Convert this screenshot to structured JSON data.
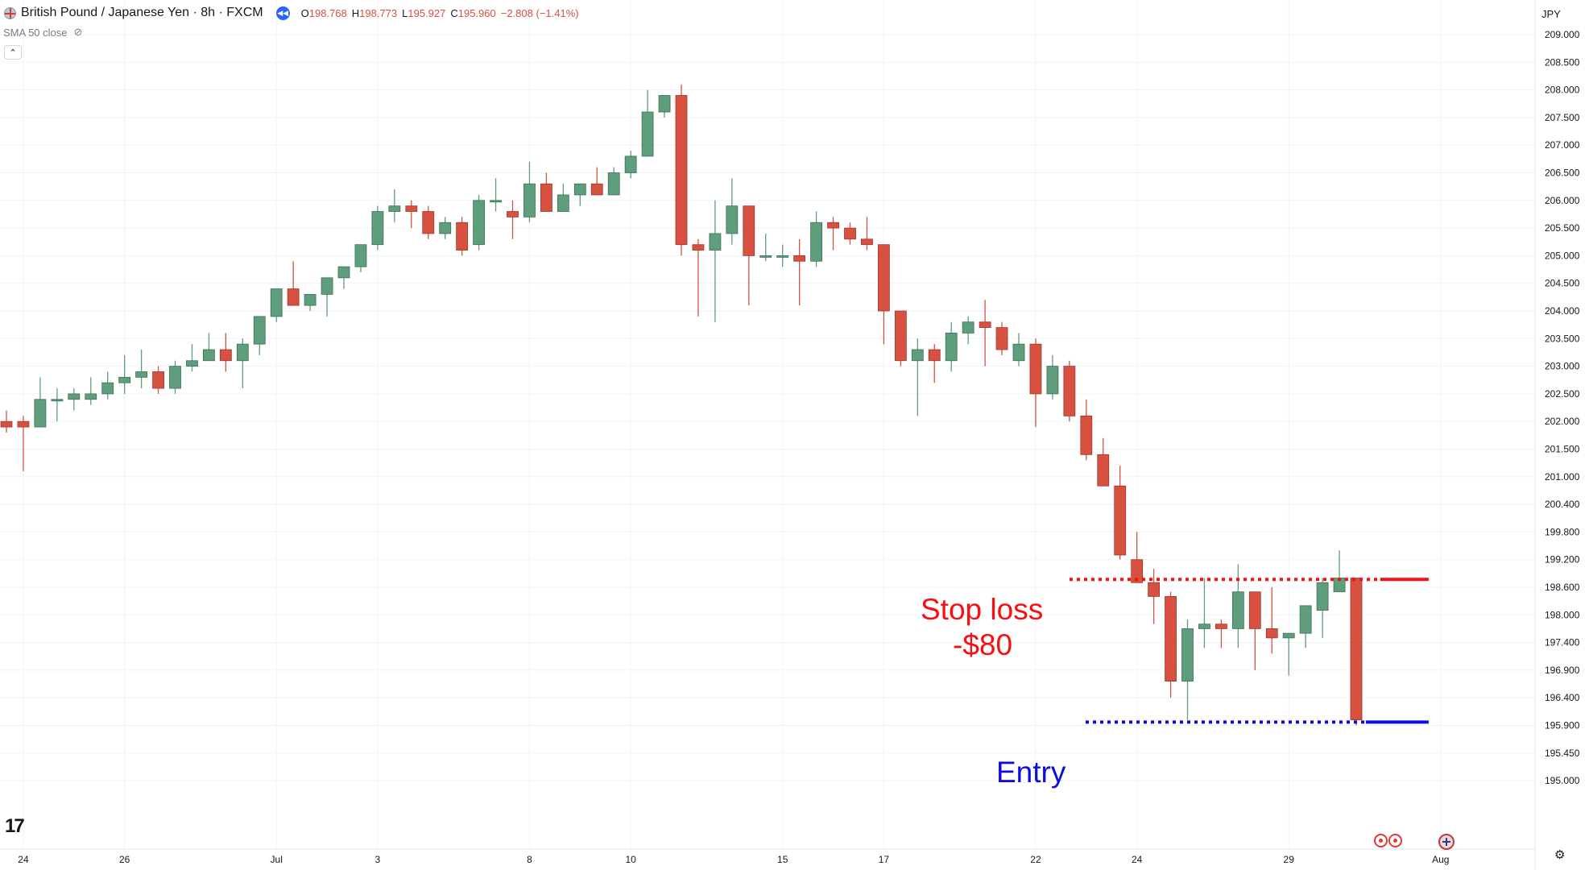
{
  "header": {
    "symbol": "British Pound / Japanese Yen · 8h · FXCM",
    "open_label": "O",
    "open": "198.768",
    "high_label": "H",
    "high": "198.773",
    "low_label": "L",
    "low": "195.927",
    "close_label": "C",
    "close": "195.960",
    "change": "−2.808 (−1.41%)",
    "indicator": "SMA 50 close",
    "currency": "JPY",
    "logo_text": "17"
  },
  "colors": {
    "up": "#5e9e7c",
    "down": "#d85040",
    "stop_loss": "#f70f12",
    "entry": "#0d0de0",
    "grid": "#f0f3fa",
    "axis_text": "#131722"
  },
  "icons": [
    "flag-icon",
    "rewind-icon",
    "eye-off-icon",
    "chevron-up-icon",
    "tradingview-logo",
    "event-icon",
    "globe-icon",
    "settings-icon"
  ],
  "annotations": {
    "stop_loss_label": "Stop loss",
    "stop_loss_amount": "-$80",
    "entry_label": "Entry"
  },
  "chart_data": {
    "type": "candlestick",
    "timeframe": "8h",
    "ylim": [
      194.9,
      209.2
    ],
    "y_ticks": [
      "209.000",
      "208.500",
      "208.000",
      "207.500",
      "207.000",
      "206.500",
      "206.000",
      "205.500",
      "205.000",
      "204.500",
      "204.000",
      "203.500",
      "203.000",
      "202.500",
      "202.000",
      "201.500",
      "201.000",
      "200.400",
      "199.800",
      "199.200",
      "198.600",
      "198.000",
      "197.400",
      "196.900",
      "196.400",
      "195.900",
      "195.450",
      "195.000"
    ],
    "x_ticks": [
      {
        "label": "24",
        "index": 1
      },
      {
        "label": "26",
        "index": 7
      },
      {
        "label": "Jul",
        "index": 16
      },
      {
        "label": "3",
        "index": 22
      },
      {
        "label": "8",
        "index": 31
      },
      {
        "label": "10",
        "index": 37
      },
      {
        "label": "15",
        "index": 46
      },
      {
        "label": "17",
        "index": 52
      },
      {
        "label": "22",
        "index": 61
      },
      {
        "label": "24",
        "index": 67
      },
      {
        "label": "29",
        "index": 76
      },
      {
        "label": "Aug",
        "index": 85
      }
    ],
    "candles": [
      [
        202.0,
        202.2,
        201.8,
        201.9
      ],
      [
        202.0,
        202.1,
        201.1,
        201.9
      ],
      [
        201.9,
        202.8,
        201.9,
        202.4
      ],
      [
        202.4,
        202.6,
        202.0,
        202.4
      ],
      [
        202.4,
        202.6,
        202.2,
        202.5
      ],
      [
        202.4,
        202.8,
        202.3,
        202.5
      ],
      [
        202.5,
        202.9,
        202.4,
        202.7
      ],
      [
        202.7,
        203.2,
        202.5,
        202.8
      ],
      [
        202.8,
        203.3,
        202.6,
        202.9
      ],
      [
        202.9,
        203.0,
        202.5,
        202.6
      ],
      [
        202.6,
        203.1,
        202.5,
        203.0
      ],
      [
        203.0,
        203.4,
        202.9,
        203.1
      ],
      [
        203.1,
        203.6,
        203.1,
        203.3
      ],
      [
        203.3,
        203.6,
        202.9,
        203.1
      ],
      [
        203.1,
        203.5,
        202.6,
        203.4
      ],
      [
        203.4,
        203.9,
        203.2,
        203.9
      ],
      [
        203.9,
        204.4,
        203.8,
        204.4
      ],
      [
        204.4,
        204.9,
        204.1,
        204.1
      ],
      [
        204.1,
        204.3,
        204.0,
        204.3
      ],
      [
        204.3,
        204.6,
        203.9,
        204.6
      ],
      [
        204.6,
        204.8,
        204.4,
        204.8
      ],
      [
        204.8,
        205.2,
        204.7,
        205.2
      ],
      [
        205.2,
        205.9,
        205.1,
        205.8
      ],
      [
        205.8,
        206.2,
        205.6,
        205.9
      ],
      [
        205.9,
        206.0,
        205.5,
        205.8
      ],
      [
        205.8,
        205.9,
        205.3,
        205.4
      ],
      [
        205.4,
        205.7,
        205.3,
        205.6
      ],
      [
        205.6,
        205.7,
        205.0,
        205.1
      ],
      [
        205.2,
        206.1,
        205.1,
        206.0
      ],
      [
        206.0,
        206.4,
        205.8,
        206.0
      ],
      [
        205.8,
        206.0,
        205.3,
        205.7
      ],
      [
        205.7,
        206.7,
        205.6,
        206.3
      ],
      [
        206.3,
        206.5,
        205.8,
        205.8
      ],
      [
        205.8,
        206.3,
        205.8,
        206.1
      ],
      [
        206.1,
        206.3,
        205.9,
        206.3
      ],
      [
        206.3,
        206.6,
        206.1,
        206.1
      ],
      [
        206.1,
        206.6,
        206.1,
        206.5
      ],
      [
        206.5,
        206.9,
        206.4,
        206.8
      ],
      [
        206.8,
        208.0,
        206.8,
        207.6
      ],
      [
        207.6,
        207.9,
        207.5,
        207.9
      ],
      [
        207.9,
        208.1,
        205.0,
        205.2
      ],
      [
        205.2,
        205.3,
        203.9,
        205.1
      ],
      [
        205.1,
        206.0,
        203.8,
        205.4
      ],
      [
        205.4,
        206.4,
        205.2,
        205.9
      ],
      [
        205.9,
        205.9,
        204.1,
        205.0
      ],
      [
        205.0,
        205.4,
        204.9,
        205.0
      ],
      [
        205.0,
        205.2,
        204.8,
        205.0
      ],
      [
        205.0,
        205.3,
        204.1,
        204.9
      ],
      [
        204.9,
        205.8,
        204.8,
        205.6
      ],
      [
        205.6,
        205.7,
        205.1,
        205.5
      ],
      [
        205.5,
        205.6,
        205.2,
        205.3
      ],
      [
        205.3,
        205.7,
        205.1,
        205.2
      ],
      [
        205.2,
        205.2,
        203.4,
        204.0
      ],
      [
        204.0,
        204.0,
        203.0,
        203.1
      ],
      [
        203.1,
        203.5,
        202.1,
        203.3
      ],
      [
        203.3,
        203.4,
        202.7,
        203.1
      ],
      [
        203.1,
        203.8,
        202.9,
        203.6
      ],
      [
        203.6,
        203.9,
        203.4,
        203.8
      ],
      [
        203.8,
        204.2,
        203.0,
        203.7
      ],
      [
        203.7,
        203.8,
        203.2,
        203.3
      ],
      [
        203.1,
        203.6,
        203.0,
        203.4
      ],
      [
        203.4,
        203.5,
        201.9,
        202.5
      ],
      [
        202.5,
        203.2,
        202.4,
        203.0
      ],
      [
        203.0,
        203.1,
        202.0,
        202.1
      ],
      [
        202.1,
        202.4,
        201.3,
        201.4
      ],
      [
        201.4,
        201.7,
        200.8,
        200.8
      ],
      [
        200.8,
        201.2,
        199.2,
        199.3
      ],
      [
        199.2,
        199.8,
        198.7,
        198.7
      ],
      [
        198.7,
        199.0,
        197.8,
        198.4
      ],
      [
        198.4,
        198.5,
        196.4,
        196.7
      ],
      [
        196.7,
        197.9,
        196.0,
        197.7
      ],
      [
        197.7,
        198.8,
        197.3,
        197.8
      ],
      [
        197.8,
        197.9,
        197.3,
        197.7
      ],
      [
        197.7,
        199.1,
        197.3,
        198.5
      ],
      [
        198.5,
        198.5,
        196.9,
        197.7
      ],
      [
        197.7,
        198.6,
        197.2,
        197.5
      ],
      [
        197.5,
        197.6,
        196.8,
        197.6
      ],
      [
        197.6,
        198.2,
        197.3,
        198.2
      ],
      [
        198.1,
        198.8,
        197.5,
        198.7
      ],
      [
        198.5,
        199.4,
        198.5,
        198.8
      ],
      [
        198.8,
        198.8,
        195.9,
        196.0
      ]
    ],
    "stop_loss": 198.77,
    "entry": 195.96,
    "line_end_index": 82
  }
}
